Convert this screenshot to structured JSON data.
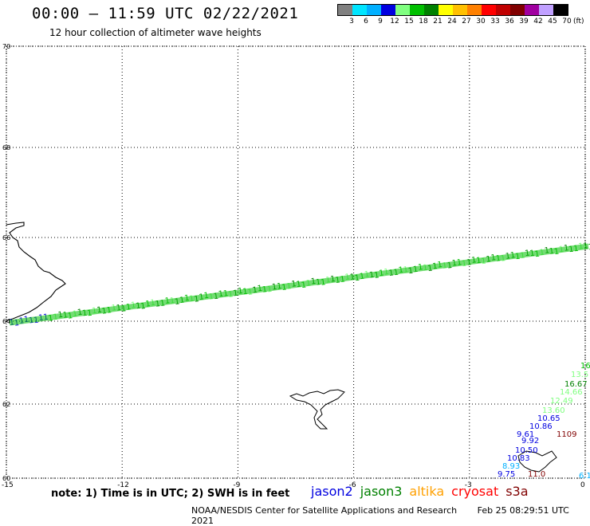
{
  "header": {
    "title": "00:00 – 11:59 UTC 02/22/2021",
    "subtitle": "12 hour collection of altimeter wave heights"
  },
  "legend": {
    "colors": [
      "#808080",
      "#00e5ff",
      "#00b0ff",
      "#0000e0",
      "#80ff80",
      "#00c000",
      "#008000",
      "#ffff00",
      "#ffc000",
      "#ff8000",
      "#ff0000",
      "#c00000",
      "#800000",
      "#a000a0",
      "#c0a0ff",
      "#000000"
    ],
    "ticks": [
      "3",
      "6",
      "9",
      "12",
      "15",
      "18",
      "21",
      "24",
      "27",
      "30",
      "33",
      "36",
      "39",
      "42",
      "45",
      "70"
    ],
    "unit": "(ft)"
  },
  "map": {
    "lat_labels": [
      "70",
      "68",
      "66",
      "64",
      "62",
      "60"
    ],
    "lon_labels": [
      "-15",
      "-12",
      "-9",
      "-6",
      "-3",
      "0"
    ],
    "track_colors": [
      "#00c000",
      "#80ff80",
      "#008000",
      "#00a000",
      "#0000e0"
    ],
    "lat_range": [
      60,
      70
    ],
    "lon_range": [
      -15,
      0
    ],
    "cluster_values": [
      {
        "text": "16",
        "color": "#00c000"
      },
      {
        "text": "13.5",
        "color": "#80ff80"
      },
      {
        "text": "16.67",
        "color": "#008000"
      },
      {
        "text": "14.66",
        "color": "#80ff80"
      },
      {
        "text": "12.49",
        "color": "#80ff80"
      },
      {
        "text": "13.60",
        "color": "#80ff80"
      },
      {
        "text": "10.65",
        "color": "#0000e0"
      },
      {
        "text": "10.86",
        "color": "#0000e0"
      },
      {
        "text": "9.61",
        "color": "#0000e0"
      },
      {
        "text": "1109",
        "color": "#800000"
      },
      {
        "text": "9.92",
        "color": "#0000e0"
      },
      {
        "text": "10.50",
        "color": "#0000e0"
      },
      {
        "text": "10.83",
        "color": "#0000e0"
      },
      {
        "text": "8.93",
        "color": "#00b0ff"
      },
      {
        "text": "9.75",
        "color": "#0000e0"
      },
      {
        "text": "11.0",
        "color": "#800000"
      },
      {
        "text": "6.1",
        "color": "#00b0ff"
      }
    ]
  },
  "note": "note: 1) Time is in UTC; 2) SWH is in feet",
  "satellites": [
    {
      "name": "jason2",
      "color": "#0000e0"
    },
    {
      "name": "jason3",
      "color": "#008000"
    },
    {
      "name": "altika",
      "color": "#ffa000"
    },
    {
      "name": "cryosat",
      "color": "#ff0000"
    },
    {
      "name": "s3a",
      "color": "#800000"
    }
  ],
  "footer": {
    "org": "NOAA/NESDIS Center for Satellite Applications and Research",
    "timestamp": "Feb 25 08:29:51 UTC 2021"
  }
}
